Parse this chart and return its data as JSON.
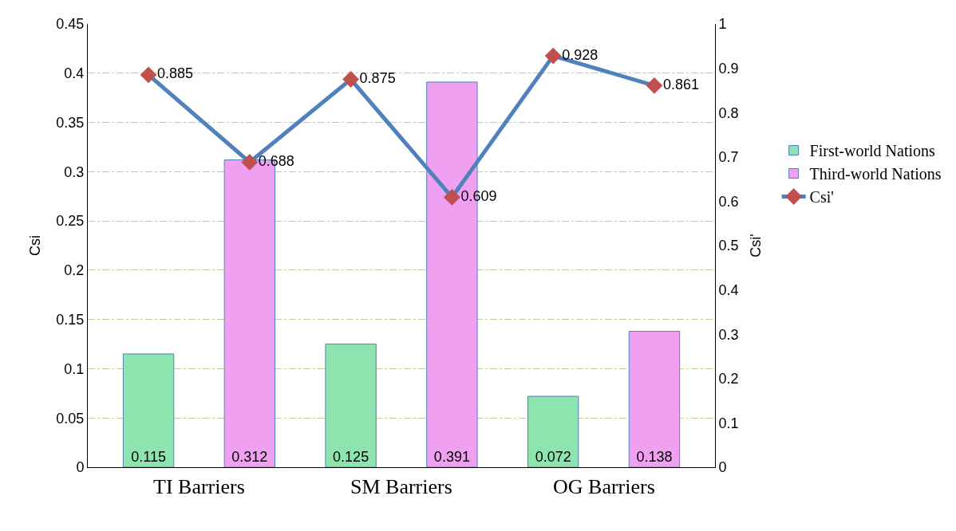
{
  "chart_data": {
    "type": "bar",
    "categories": [
      null,
      null,
      null,
      null,
      null,
      null
    ],
    "series": [
      {
        "name": "First-world Nations",
        "color": "#8ee4af",
        "values": [
          0.115,
          null,
          0.125,
          null,
          0.072,
          null
        ]
      },
      {
        "name": "Third-world Nations",
        "color": "#f0a0f0",
        "values": [
          null,
          0.312,
          null,
          0.391,
          null,
          0.138
        ]
      },
      {
        "name": "Csi'",
        "type": "line",
        "axis": "y2",
        "color": "#4f81bd",
        "marker": "diamond",
        "values": [
          0.885,
          0.688,
          0.875,
          0.609,
          0.928,
          0.861
        ]
      }
    ],
    "ylabel": "Csi",
    "y2label": "Csi'",
    "ylim": [
      0,
      0.45
    ],
    "yticks": [
      0,
      0.05,
      0.1,
      0.15,
      0.2,
      0.25,
      0.3,
      0.35,
      0.4,
      0.45
    ],
    "y2lim": [
      0,
      1
    ],
    "y2ticks": [
      0,
      0.1,
      0.2,
      0.3,
      0.4,
      0.5,
      0.6,
      0.7,
      0.8,
      0.9,
      1
    ],
    "annotations": [
      "TI Barriers",
      "SM Barriers",
      "OG Barriers"
    ],
    "data_labels": true,
    "grid": "y",
    "legend": "right"
  }
}
